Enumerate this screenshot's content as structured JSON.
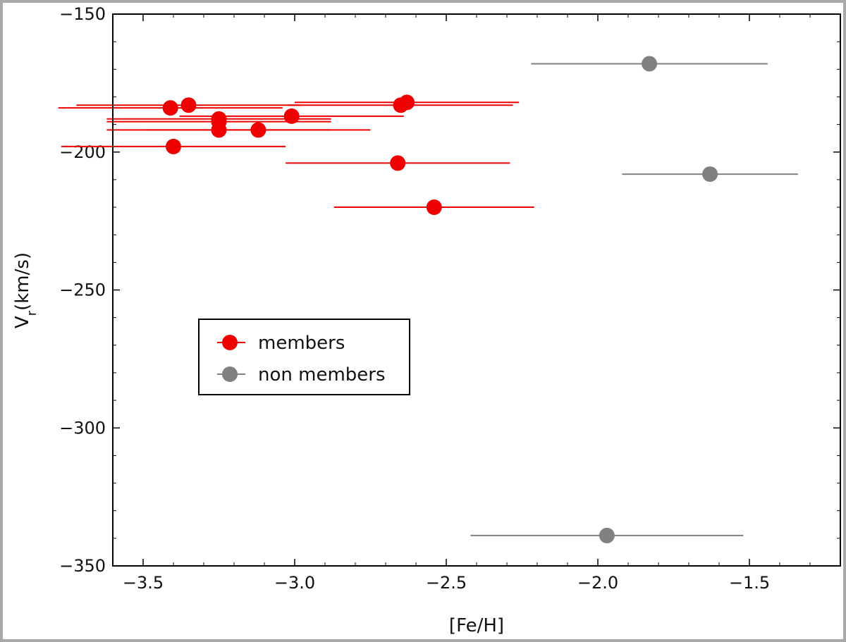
{
  "chart_data": {
    "type": "scatter",
    "xlabel": "[Fe/H]",
    "ylabel": {
      "main": "V",
      "sub": "r",
      "unit": "(km/s)"
    },
    "xlim": [
      -3.6,
      -1.2
    ],
    "ylim": [
      -350,
      -150
    ],
    "x_ticks": [
      -3.5,
      -3.0,
      -2.5,
      -2.0,
      -1.5
    ],
    "x_tick_labels": [
      "−3.5",
      "−3.0",
      "−2.5",
      "−2.0",
      "−1.5"
    ],
    "y_ticks": [
      -150,
      -200,
      -250,
      -300,
      -350
    ],
    "y_tick_labels": [
      "−150",
      "−200",
      "−250",
      "−300",
      "−350"
    ],
    "grid": false,
    "legend_placement": "center-left",
    "series": [
      {
        "name": "members",
        "color": "#ee0000",
        "points": [
          {
            "x": -3.41,
            "y": -184,
            "xerr_low": 0.37,
            "xerr_high": 0.37
          },
          {
            "x": -3.35,
            "y": -183,
            "xerr_low": 0.37,
            "xerr_high": 0.37
          },
          {
            "x": -3.25,
            "y": -188,
            "xerr_low": 0.37,
            "xerr_high": 0.37
          },
          {
            "x": -3.25,
            "y": -189,
            "xerr_low": 0.37,
            "xerr_high": 0.37
          },
          {
            "x": -3.25,
            "y": -192,
            "xerr_low": 0.37,
            "xerr_high": 0.37
          },
          {
            "x": -3.12,
            "y": -192,
            "xerr_low": 0.37,
            "xerr_high": 0.37
          },
          {
            "x": -3.01,
            "y": -187,
            "xerr_low": 0.37,
            "xerr_high": 0.37
          },
          {
            "x": -3.4,
            "y": -198,
            "xerr_low": 0.37,
            "xerr_high": 0.37
          },
          {
            "x": -2.65,
            "y": -183,
            "xerr_low": 0.37,
            "xerr_high": 0.37
          },
          {
            "x": -2.63,
            "y": -182,
            "xerr_low": 0.37,
            "xerr_high": 0.37
          },
          {
            "x": -2.66,
            "y": -204,
            "xerr_low": 0.37,
            "xerr_high": 0.37
          },
          {
            "x": -2.54,
            "y": -220,
            "xerr_low": 0.33,
            "xerr_high": 0.33
          }
        ]
      },
      {
        "name": "non members",
        "color": "#808080",
        "points": [
          {
            "x": -1.83,
            "y": -168,
            "xerr_low": 0.39,
            "xerr_high": 0.39
          },
          {
            "x": -1.63,
            "y": -208,
            "xerr_low": 0.29,
            "xerr_high": 0.29
          },
          {
            "x": -1.97,
            "y": -339,
            "xerr_low": 0.45,
            "xerr_high": 0.45
          }
        ]
      }
    ]
  }
}
